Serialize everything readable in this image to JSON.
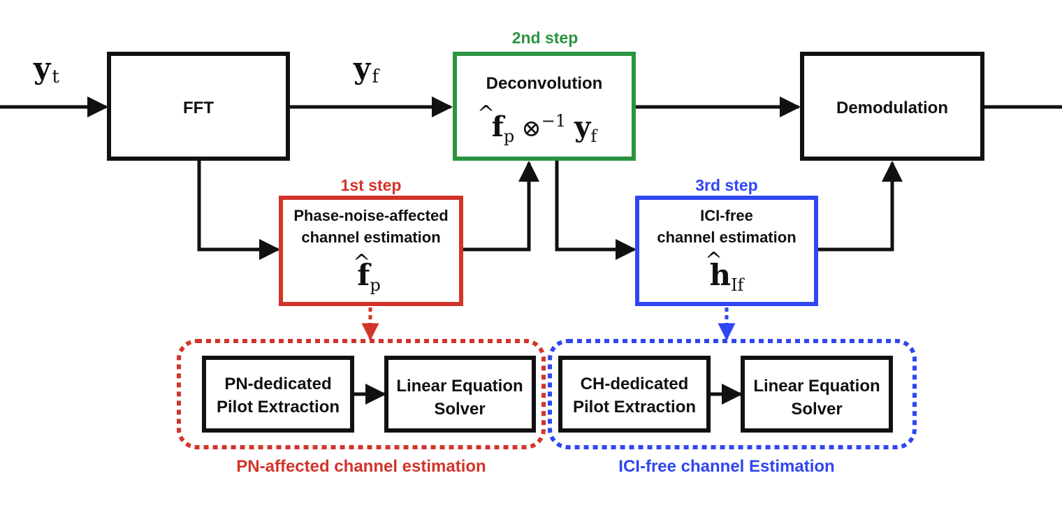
{
  "colors": {
    "black": "#111111",
    "red": "#d2342a",
    "green": "#2b9440",
    "blue": "#2f46f2"
  },
  "signals": {
    "yt": {
      "base": "y",
      "sub": "t"
    },
    "yf": {
      "base": "y",
      "sub": "f"
    }
  },
  "blocks": {
    "fft": {
      "label": "FFT"
    },
    "deconvolution": {
      "step": "2nd step",
      "label": "Deconvolution",
      "f_base": "f",
      "f_sub": "p",
      "operator": "⊗",
      "operator_sup": "−1",
      "y_base": "y",
      "y_sub": "f"
    },
    "demodulation": {
      "label": "Demodulation"
    },
    "pn_estimation": {
      "step": "1st step",
      "line1": "Phase-noise-affected",
      "line2": "channel estimation",
      "sym_base": "f",
      "sym_sub": "p"
    },
    "ici_estimation": {
      "step": "3rd step",
      "line1": "ICI-free",
      "line2": "channel estimation",
      "sym_base": "h",
      "sym_sub": "If"
    }
  },
  "groups": {
    "pn_group": {
      "caption": "PN-affected channel estimation",
      "box1_line1": "PN-dedicated",
      "box1_line2": "Pilot Extraction",
      "box2_line1": "Linear Equation",
      "box2_line2": "Solver"
    },
    "ici_group": {
      "caption": "ICI-free channel Estimation",
      "box1_line1": "CH-dedicated",
      "box1_line2": "Pilot Extraction",
      "box2_line1": "Linear Equation",
      "box2_line2": "Solver"
    }
  }
}
